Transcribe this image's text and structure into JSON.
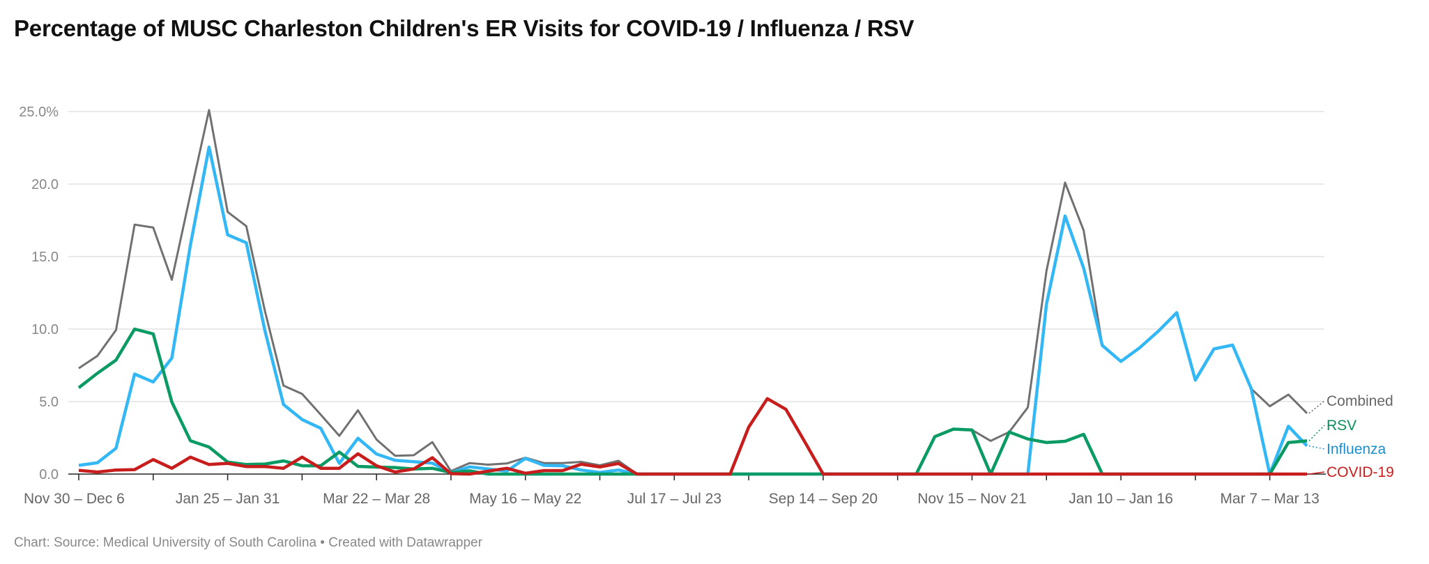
{
  "title": "Percentage of MUSC Charleston Children's ER Visits for COVID-19 / Influenza / RSV",
  "footer": "Chart: Source: Medical University of South Carolina • Created with Datawrapper",
  "chart_data": {
    "type": "line",
    "title": "Percentage of MUSC Charleston Children's ER Visits for COVID-19 / Influenza / RSV",
    "xlabel": "",
    "ylabel": "",
    "ylim": [
      0,
      25
    ],
    "y_ticks": [
      0,
      5,
      10,
      15,
      20,
      25
    ],
    "y_tick_labels": [
      "0.0",
      "5.0",
      "10.0",
      "15.0",
      "20.0",
      "25.0%"
    ],
    "x_tick_labels": [
      "Nov 30 – Dec 6",
      "Jan 25 – Jan 31",
      "Mar 22 – Mar 28",
      "May 16 – May 22",
      "Jul 17 – Jul 23",
      "Sep 14 – Sep 20",
      "Nov 15 – Nov 21",
      "Jan 10 – Jan 16",
      "Mar 7 – Mar 13"
    ],
    "x_tick_label_every_n_weeks": 8,
    "grid": true,
    "legend": "direct labels at right end of lines",
    "series": [
      {
        "name": "Combined",
        "color": "#707070",
        "label_color": "#666666",
        "values": [
          7.3,
          8.15,
          9.93,
          17.2,
          17.0,
          13.4,
          19.3,
          25.1,
          18.07,
          17.1,
          11.26,
          6.1,
          5.53,
          4.1,
          2.64,
          4.4,
          2.38,
          1.26,
          1.3,
          2.2,
          0.2,
          0.76,
          0.65,
          0.73,
          1.13,
          0.76,
          0.76,
          0.84,
          0.6,
          0.92,
          0,
          0,
          0,
          0,
          0,
          0,
          3.24,
          5.2,
          4.46,
          2.25,
          0.05,
          0,
          0,
          0,
          0,
          0,
          2.58,
          3.1,
          3.04,
          2.29,
          2.9,
          4.6,
          14.0,
          20.1,
          16.8,
          8.87,
          7.77,
          8.7,
          9.84,
          11.13,
          6.48,
          8.63,
          8.9,
          5.89,
          4.68,
          5.48,
          4.19
        ]
      },
      {
        "name": "Influenza",
        "color": "#33b8f5",
        "label_color": "#1a8fd0",
        "values": [
          0.6,
          0.78,
          1.78,
          6.9,
          6.35,
          8.0,
          15.8,
          22.55,
          16.5,
          15.95,
          9.9,
          4.8,
          3.76,
          3.16,
          0.74,
          2.47,
          1.38,
          0.95,
          0.85,
          0.75,
          0.1,
          0.5,
          0.35,
          0.2,
          1.08,
          0.6,
          0.57,
          0.28,
          0.11,
          0.28,
          0,
          0,
          0,
          0,
          0,
          0,
          0,
          0,
          0,
          0,
          0,
          0,
          0,
          0,
          0,
          0,
          0,
          0,
          0,
          0,
          0,
          0,
          11.7,
          17.8,
          14.2,
          8.87,
          7.77,
          8.7,
          9.84,
          11.13,
          6.48,
          8.63,
          8.9,
          5.9,
          0,
          3.3,
          1.94
        ]
      },
      {
        "name": "RSV",
        "color": "#0a9a63",
        "label_color": "#0a8f5b",
        "values": [
          5.95,
          6.95,
          7.86,
          10.0,
          9.67,
          4.97,
          2.3,
          1.86,
          0.83,
          0.66,
          0.69,
          0.91,
          0.57,
          0.57,
          1.52,
          0.53,
          0.48,
          0.45,
          0.35,
          0.4,
          0.1,
          0.22,
          0,
          0,
          0,
          0,
          0,
          0,
          0,
          0,
          0,
          0,
          0,
          0,
          0,
          0,
          0,
          0,
          0,
          0,
          0,
          0,
          0,
          0,
          0,
          0,
          2.58,
          3.1,
          3.04,
          0,
          2.9,
          2.42,
          2.18,
          2.26,
          2.74,
          0,
          0,
          0,
          0,
          0,
          0,
          0,
          0,
          0,
          0,
          2.18,
          2.29
        ]
      },
      {
        "name": "COVID-19",
        "color": "#c71e1d",
        "label_color": "#c71e1d",
        "values": [
          0.26,
          0.14,
          0.28,
          0.31,
          1.0,
          0.4,
          1.17,
          0.66,
          0.74,
          0.52,
          0.52,
          0.4,
          1.17,
          0.4,
          0.4,
          1.4,
          0.57,
          0.14,
          0.35,
          1.13,
          0.03,
          0,
          0.2,
          0.4,
          0.06,
          0.24,
          0.24,
          0.68,
          0.49,
          0.73,
          0,
          0,
          0,
          0,
          0,
          0,
          3.24,
          5.2,
          4.46,
          2.25,
          0,
          0,
          0,
          0,
          0,
          0,
          0,
          0,
          0,
          0,
          0,
          0,
          0,
          0,
          0,
          0,
          0,
          0,
          0,
          0,
          0,
          0,
          0,
          0,
          0,
          0,
          0
        ]
      }
    ]
  }
}
